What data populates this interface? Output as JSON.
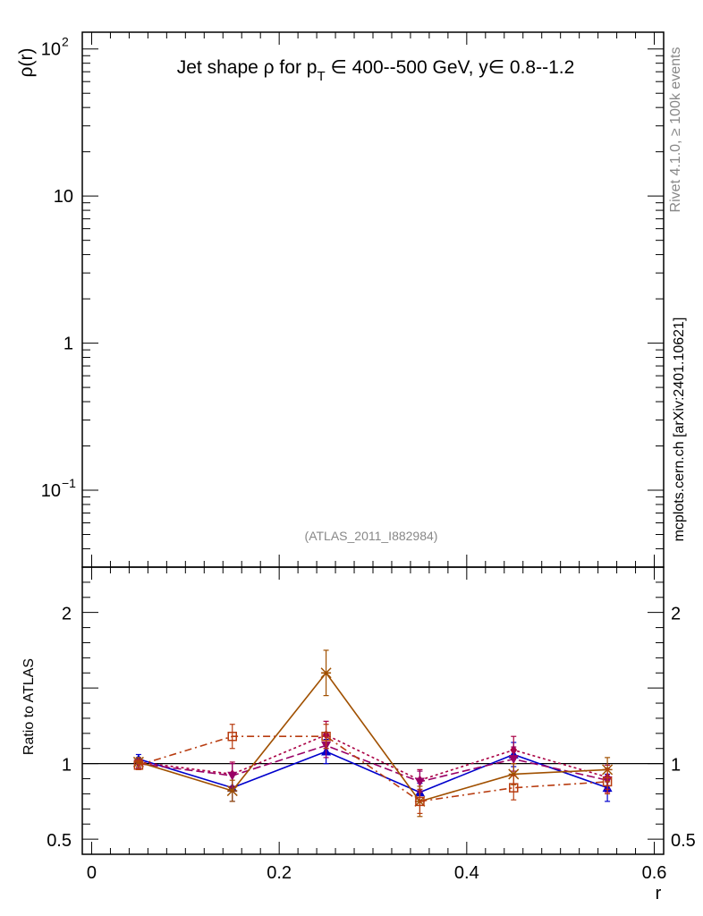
{
  "chart_data": [
    {
      "type": "line",
      "panel": "main",
      "title": "Jet shape ρ for p_T ∈ 400--500 GeV, y∈ 0.8--1.2",
      "title_parts": {
        "prefix": "Jet shape ",
        "rho": "ρ",
        "for": " for ",
        "p": "p",
        "sub": "T",
        "range": " ∈ 400--500 GeV, ",
        "y": "y∈ 0.8--1.2"
      },
      "ylabel": "ρ(r)",
      "yscale": "log",
      "ylim": [
        0.03,
        130
      ],
      "xlim": [
        -0.01,
        0.61
      ],
      "yticks": [
        {
          "value": 0.1,
          "label": "10",
          "exp": "−1"
        },
        {
          "value": 1,
          "label": "1",
          "exp": ""
        },
        {
          "value": 10,
          "label": "10",
          "exp": ""
        },
        {
          "value": 100,
          "label": "10",
          "exp": "2"
        }
      ],
      "annotation": "(ATLAS_2011_I882984)",
      "series": []
    },
    {
      "type": "line",
      "panel": "ratio",
      "ylabel": "Ratio to ATLAS",
      "xlabel": "r",
      "ylim": [
        0.4,
        2.3
      ],
      "xlim": [
        -0.01,
        0.61
      ],
      "xticks": [
        {
          "value": 0,
          "label": "0"
        },
        {
          "value": 0.2,
          "label": "0.2"
        },
        {
          "value": 0.4,
          "label": "0.4"
        },
        {
          "value": 0.6,
          "label": "0.6"
        }
      ],
      "yticks": [
        {
          "value": 0.5,
          "label": "0.5"
        },
        {
          "value": 1,
          "label": "1"
        },
        {
          "value": 2,
          "label": "2"
        }
      ],
      "reference_line": 1,
      "x": [
        0.05,
        0.15,
        0.25,
        0.35,
        0.45,
        0.55
      ],
      "series": [
        {
          "name": "blue-triangle",
          "color": "#0000cc",
          "dash": "",
          "marker": "triangle-up",
          "values": [
            1.03,
            0.84,
            1.08,
            0.81,
            1.06,
            0.84
          ],
          "errors": [
            0.03,
            0.09,
            0.08,
            0.06,
            0.08,
            0.09
          ]
        },
        {
          "name": "magenta-diamond",
          "color": "#aa0044",
          "dash": "3,3",
          "marker": "diamond",
          "values": [
            1.01,
            0.93,
            1.19,
            0.89,
            1.09,
            0.91
          ],
          "errors": [
            0.03,
            0.08,
            0.09,
            0.07,
            0.09,
            0.08
          ]
        },
        {
          "name": "purple-triangle-down",
          "color": "#990066",
          "dash": "9,4",
          "marker": "triangle-down",
          "values": [
            1.0,
            0.92,
            1.12,
            0.88,
            1.03,
            0.89
          ],
          "errors": [
            0.03,
            0.08,
            0.08,
            0.07,
            0.08,
            0.08
          ]
        },
        {
          "name": "brown-star",
          "color": "#a05000",
          "dash": "",
          "marker": "star",
          "values": [
            1.01,
            0.82,
            1.6,
            0.75,
            0.93,
            0.96
          ],
          "errors": [
            0.03,
            0.07,
            0.15,
            0.1,
            0.07,
            0.08
          ]
        },
        {
          "name": "orange-open-square",
          "color": "#b83c10",
          "dash": "8,4,2,4",
          "marker": "open-square",
          "values": [
            0.99,
            1.18,
            1.18,
            0.75,
            0.84,
            0.88
          ],
          "errors": [
            0.03,
            0.08,
            0.08,
            0.08,
            0.08,
            0.08
          ]
        }
      ]
    }
  ],
  "side_labels": {
    "rivet": "Rivet 4.1.0, ≥ 100k events",
    "mcplots": "mcplots.cern.ch [arXiv:2401.10621]"
  }
}
